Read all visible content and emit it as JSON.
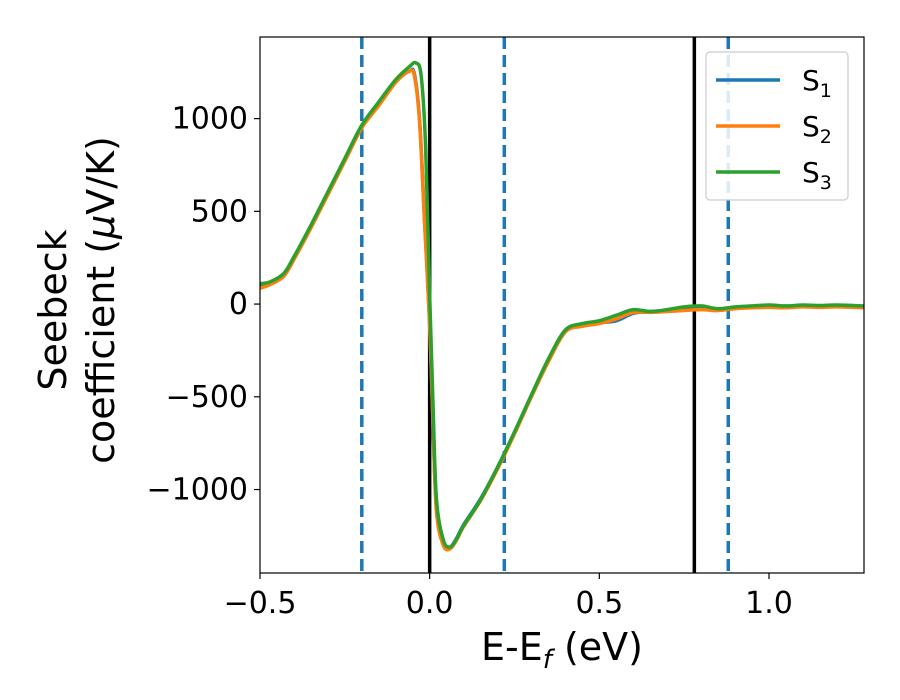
{
  "chart_data": {
    "type": "line",
    "xlabel": "E-E",
    "xlabel_sub": "f",
    "xlabel_unit": " (eV)",
    "ylabel_line1": "Seebeck",
    "ylabel_line2_pre": "coefficient  (",
    "ylabel_mu": "μ",
    "ylabel_line2_post": "V/K)",
    "xlim": [
      -0.5,
      1.28
    ],
    "ylim": [
      -1450,
      1440
    ],
    "xticks": [
      -0.5,
      0.0,
      0.5,
      1.0
    ],
    "xtick_labels": [
      "−0.5",
      "0.0",
      "0.5",
      "1.0"
    ],
    "yticks": [
      -1000,
      -500,
      0,
      500,
      1000
    ],
    "ytick_labels": [
      "−1000",
      "−500",
      "0",
      "500",
      "1000"
    ],
    "grid": false,
    "legend_position": "top-right",
    "vlines_solid": [
      0.0,
      0.78
    ],
    "vlines_dashed": [
      -0.2,
      0.22,
      0.88
    ],
    "vline_solid_color": "#000000",
    "vline_dashed_color": "#1f77b4",
    "series": [
      {
        "name": "S",
        "sub": "1",
        "color": "#1f77b4",
        "x": [
          -0.5,
          -0.47,
          -0.43,
          -0.4,
          -0.35,
          -0.3,
          -0.25,
          -0.2,
          -0.15,
          -0.1,
          -0.06,
          -0.045,
          -0.03,
          -0.015,
          0.0,
          0.01,
          0.02,
          0.04,
          0.06,
          0.08,
          0.1,
          0.15,
          0.2,
          0.25,
          0.3,
          0.35,
          0.4,
          0.45,
          0.5,
          0.55,
          0.6,
          0.65,
          0.7,
          0.75,
          0.8,
          0.85,
          0.9,
          0.95,
          1.0,
          1.05,
          1.1,
          1.15,
          1.2,
          1.28
        ],
        "y": [
          90,
          110,
          160,
          250,
          420,
          600,
          780,
          960,
          1080,
          1200,
          1255,
          1240,
          1000,
          450,
          -100,
          -650,
          -1100,
          -1280,
          -1310,
          -1260,
          -1190,
          -1050,
          -880,
          -690,
          -490,
          -300,
          -140,
          -110,
          -100,
          -90,
          -50,
          -40,
          -35,
          -25,
          -20,
          -30,
          -20,
          -15,
          -10,
          -15,
          -10,
          -12,
          -10,
          -15
        ]
      },
      {
        "name": "S",
        "sub": "2",
        "color": "#ff7f0e",
        "x": [
          -0.5,
          -0.47,
          -0.43,
          -0.4,
          -0.35,
          -0.3,
          -0.25,
          -0.2,
          -0.15,
          -0.1,
          -0.06,
          -0.045,
          -0.03,
          -0.015,
          0.0,
          0.01,
          0.02,
          0.04,
          0.06,
          0.08,
          0.1,
          0.15,
          0.2,
          0.25,
          0.3,
          0.35,
          0.4,
          0.45,
          0.5,
          0.55,
          0.6,
          0.65,
          0.7,
          0.75,
          0.8,
          0.85,
          0.9,
          0.95,
          1.0,
          1.05,
          1.1,
          1.15,
          1.2,
          1.28
        ],
        "y": [
          85,
          105,
          150,
          240,
          410,
          590,
          770,
          950,
          1070,
          1195,
          1255,
          1230,
          990,
          440,
          -110,
          -660,
          -1120,
          -1300,
          -1320,
          -1270,
          -1200,
          -1060,
          -890,
          -700,
          -500,
          -310,
          -150,
          -120,
          -105,
          -80,
          -45,
          -45,
          -40,
          -35,
          -30,
          -35,
          -25,
          -20,
          -18,
          -20,
          -15,
          -18,
          -15,
          -20
        ]
      },
      {
        "name": "S",
        "sub": "3",
        "color": "#2ca02c",
        "x": [
          -0.5,
          -0.47,
          -0.43,
          -0.4,
          -0.35,
          -0.3,
          -0.25,
          -0.2,
          -0.15,
          -0.1,
          -0.06,
          -0.04,
          -0.025,
          -0.012,
          0.0,
          0.01,
          0.02,
          0.04,
          0.06,
          0.08,
          0.1,
          0.15,
          0.2,
          0.25,
          0.3,
          0.35,
          0.4,
          0.45,
          0.5,
          0.55,
          0.6,
          0.65,
          0.7,
          0.75,
          0.8,
          0.85,
          0.9,
          0.95,
          1.0,
          1.05,
          1.1,
          1.15,
          1.2,
          1.28
        ],
        "y": [
          110,
          120,
          165,
          255,
          425,
          605,
          785,
          965,
          1090,
          1210,
          1280,
          1300,
          1230,
          850,
          50,
          -550,
          -1050,
          -1270,
          -1310,
          -1265,
          -1195,
          -1055,
          -880,
          -690,
          -490,
          -295,
          -140,
          -105,
          -90,
          -60,
          -30,
          -40,
          -30,
          -15,
          -10,
          -25,
          -15,
          -10,
          -5,
          -10,
          -5,
          -8,
          -5,
          -10
        ]
      }
    ]
  }
}
